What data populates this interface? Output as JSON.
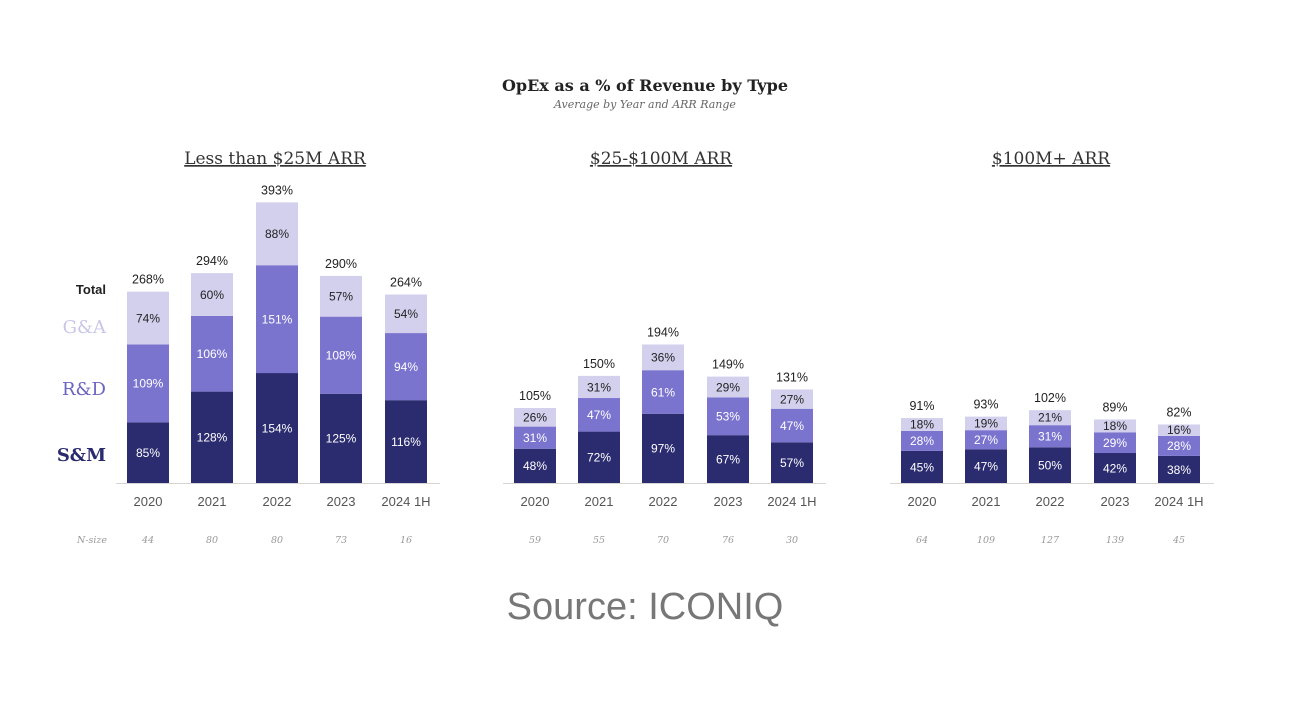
{
  "title": "OpEx as a % of Revenue by Type",
  "subtitle": "Average by Year and ARR Range",
  "legend": {
    "total": "Total",
    "ga": "G&A",
    "rd": "R&D",
    "sm": "S&M"
  },
  "nsize_label": "N-size",
  "source": "Source: ICONIQ",
  "colors": {
    "sm": "#2b2b6f",
    "rd": "#7b74cf",
    "ga": "#d3d0ee"
  },
  "chart_data": [
    {
      "type": "bar",
      "stacked": true,
      "title": "Less than $25M ARR",
      "categories": [
        "2020",
        "2021",
        "2022",
        "2023",
        "2024 1H"
      ],
      "series": [
        {
          "name": "S&M",
          "values": [
            85,
            128,
            154,
            125,
            116
          ]
        },
        {
          "name": "R&D",
          "values": [
            109,
            106,
            151,
            108,
            94
          ]
        },
        {
          "name": "G&A",
          "values": [
            74,
            60,
            88,
            57,
            54
          ]
        }
      ],
      "totals": [
        268,
        294,
        393,
        290,
        264
      ],
      "n_size": [
        44,
        80,
        80,
        73,
        16
      ],
      "ylim": [
        0,
        400
      ]
    },
    {
      "type": "bar",
      "stacked": true,
      "title": "$25-$100M ARR",
      "categories": [
        "2020",
        "2021",
        "2022",
        "2023",
        "2024 1H"
      ],
      "series": [
        {
          "name": "S&M",
          "values": [
            48,
            72,
            97,
            67,
            57
          ]
        },
        {
          "name": "R&D",
          "values": [
            31,
            47,
            61,
            53,
            47
          ]
        },
        {
          "name": "G&A",
          "values": [
            26,
            31,
            36,
            29,
            27
          ]
        }
      ],
      "totals": [
        105,
        150,
        194,
        149,
        131
      ],
      "n_size": [
        59,
        55,
        70,
        76,
        30
      ],
      "ylim": [
        0,
        400
      ]
    },
    {
      "type": "bar",
      "stacked": true,
      "title": "$100M+ ARR",
      "categories": [
        "2020",
        "2021",
        "2022",
        "2023",
        "2024 1H"
      ],
      "series": [
        {
          "name": "S&M",
          "values": [
            45,
            47,
            50,
            42,
            38
          ]
        },
        {
          "name": "R&D",
          "values": [
            28,
            27,
            31,
            29,
            28
          ]
        },
        {
          "name": "G&A",
          "values": [
            18,
            19,
            21,
            18,
            16
          ]
        }
      ],
      "totals": [
        91,
        93,
        102,
        89,
        82
      ],
      "n_size": [
        64,
        109,
        127,
        139,
        45
      ],
      "ylim": [
        0,
        400
      ]
    }
  ]
}
